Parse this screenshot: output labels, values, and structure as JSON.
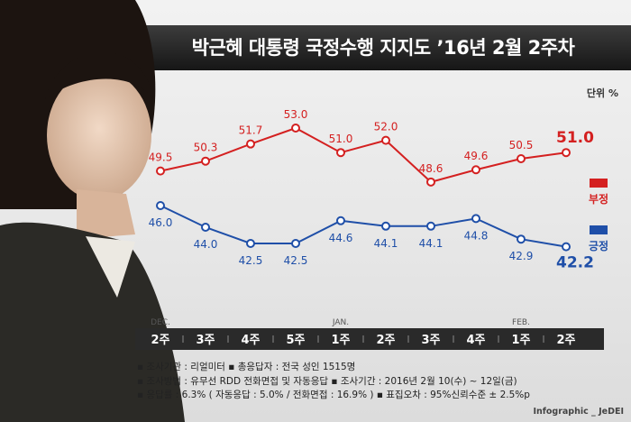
{
  "title": "박근혜 대통령 국정수행 지지도 ’16년 2월 2주차",
  "unit_label": "단위 %",
  "legend": {
    "negative": "부정",
    "positive": "긍정"
  },
  "colors": {
    "negative": "#d42020",
    "positive": "#1f4fa8"
  },
  "chart_data": {
    "type": "line",
    "categories": [
      "2주",
      "3주",
      "4주",
      "5주",
      "1주",
      "2주",
      "3주",
      "4주",
      "1주",
      "2주"
    ],
    "month_labels": [
      {
        "index": 0,
        "label": "DEC."
      },
      {
        "index": 4,
        "label": "JAN."
      },
      {
        "index": 8,
        "label": "FEB."
      }
    ],
    "series": [
      {
        "name": "부정",
        "values": [
          49.5,
          50.3,
          51.7,
          53.0,
          51.0,
          52.0,
          48.6,
          49.6,
          50.5,
          51.0
        ]
      },
      {
        "name": "긍정",
        "values": [
          46.0,
          44.0,
          42.5,
          42.5,
          44.6,
          44.1,
          44.1,
          44.8,
          42.9,
          42.2
        ]
      }
    ],
    "value_labels": {
      "negative": [
        "49.5",
        "50.3",
        "51.7",
        "53.0",
        "51.0",
        "52.0",
        "48.6",
        "49.6",
        "50.5",
        "51.0"
      ],
      "positive": [
        "46.0",
        "44.0",
        "42.5",
        "42.5",
        "44.6",
        "44.1",
        "44.1",
        "44.8",
        "42.9",
        "42.2"
      ]
    },
    "grid": false,
    "legend_position": "right"
  },
  "notes": [
    "▪ 조사기관 : 리얼미터   ▪ 총응답자 : 전국 성인 1515명",
    "▪ 조사방법 : 유무선 RDD 전화면접 및 자동응답   ▪ 조사기간 : 2016년 2월 10(수) ~ 12일(금)",
    "▪ 응답률 : 6.3% ( 자동응답 : 5.0% / 전화면접 : 16.9% )   ▪ 표집오차 : 95%신뢰수준 ± 2.5%p"
  ],
  "credit": "Infographic _ JeDEI"
}
